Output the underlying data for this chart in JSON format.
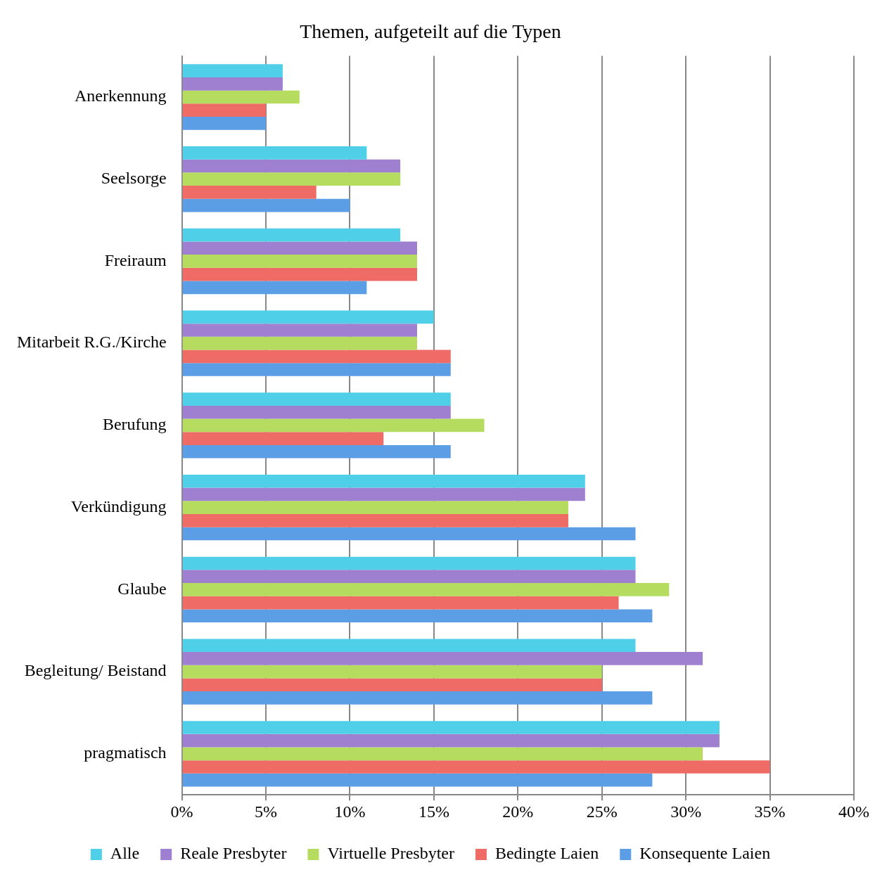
{
  "chart_data": {
    "type": "bar",
    "orientation": "horizontal",
    "title": "Themen, aufgeteilt auf die Typen",
    "categories": [
      "Anerkennung",
      "Seelsorge",
      "Freiraum",
      "Mitarbeit R.G./Kirche",
      "Berufung",
      "Verkündigung",
      "Glaube",
      "Begleitung/ Beistand",
      "pragmatisch"
    ],
    "series": [
      {
        "name": "Alle",
        "color": "#4fd0e8",
        "values": [
          6,
          11,
          13,
          15,
          16,
          24,
          27,
          27,
          32
        ]
      },
      {
        "name": "Reale Presbyter",
        "color": "#9f7fd0",
        "values": [
          6,
          13,
          14,
          14,
          16,
          24,
          27,
          31,
          32
        ]
      },
      {
        "name": "Virtuelle Presbyter",
        "color": "#b5dc5e",
        "values": [
          7,
          13,
          14,
          14,
          18,
          23,
          29,
          25,
          31
        ]
      },
      {
        "name": "Bedingte Laien",
        "color": "#ee6b66",
        "values": [
          5,
          8,
          14,
          16,
          12,
          23,
          26,
          25,
          35
        ]
      },
      {
        "name": "Konsequente Laien",
        "color": "#5b9ee6",
        "values": [
          5,
          10,
          11,
          16,
          16,
          27,
          28,
          28,
          28
        ]
      }
    ],
    "xlim": [
      0,
      40
    ],
    "xticks": [
      {
        "value": 0,
        "label": "0%"
      },
      {
        "value": 5,
        "label": "5%"
      },
      {
        "value": 10,
        "label": "10%"
      },
      {
        "value": 15,
        "label": "15%"
      },
      {
        "value": 20,
        "label": "20%"
      },
      {
        "value": 25,
        "label": "25%"
      },
      {
        "value": 30,
        "label": "30%"
      },
      {
        "value": 35,
        "label": "35%"
      },
      {
        "value": 40,
        "label": "40%"
      }
    ],
    "grid": "x",
    "legend": "bottom"
  }
}
